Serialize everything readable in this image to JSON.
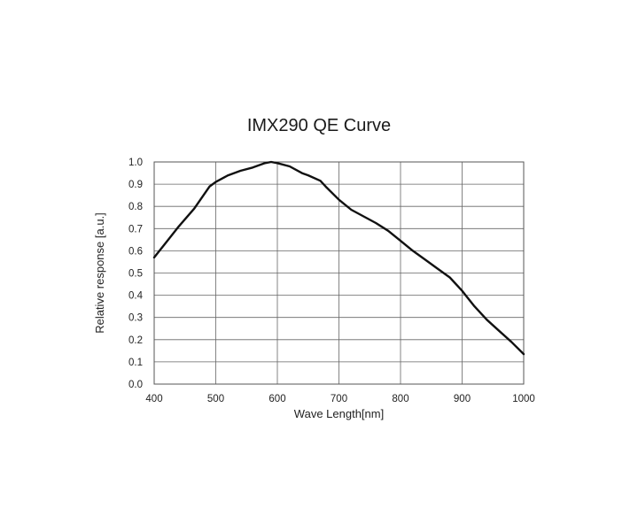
{
  "chart_data": {
    "type": "line",
    "title": "IMX290 QE Curve",
    "xlabel": "Wave Length[nm]",
    "ylabel": "Relative response [a.u.]",
    "xlim": [
      400,
      1000
    ],
    "ylim": [
      0.0,
      1.0
    ],
    "xticks": [
      "400",
      "500",
      "600",
      "700",
      "800",
      "900",
      "1000"
    ],
    "yticks": [
      "0.0",
      "0.1",
      "0.2",
      "0.3",
      "0.4",
      "0.5",
      "0.6",
      "0.7",
      "0.8",
      "0.9",
      "1.0"
    ],
    "grid": true,
    "series": [
      {
        "color": "#111111",
        "x": [
          400,
          420,
          440,
          465,
          490,
          500,
          520,
          540,
          560,
          580,
          590,
          600,
          620,
          640,
          650,
          670,
          680,
          700,
          720,
          740,
          760,
          780,
          800,
          820,
          840,
          860,
          880,
          900,
          920,
          940,
          960,
          980,
          1000
        ],
        "y": [
          0.57,
          0.64,
          0.71,
          0.79,
          0.89,
          0.91,
          0.94,
          0.96,
          0.975,
          0.995,
          1.0,
          0.995,
          0.98,
          0.95,
          0.94,
          0.915,
          0.885,
          0.83,
          0.785,
          0.755,
          0.725,
          0.69,
          0.645,
          0.6,
          0.56,
          0.52,
          0.48,
          0.42,
          0.35,
          0.29,
          0.24,
          0.19,
          0.135
        ]
      }
    ]
  }
}
